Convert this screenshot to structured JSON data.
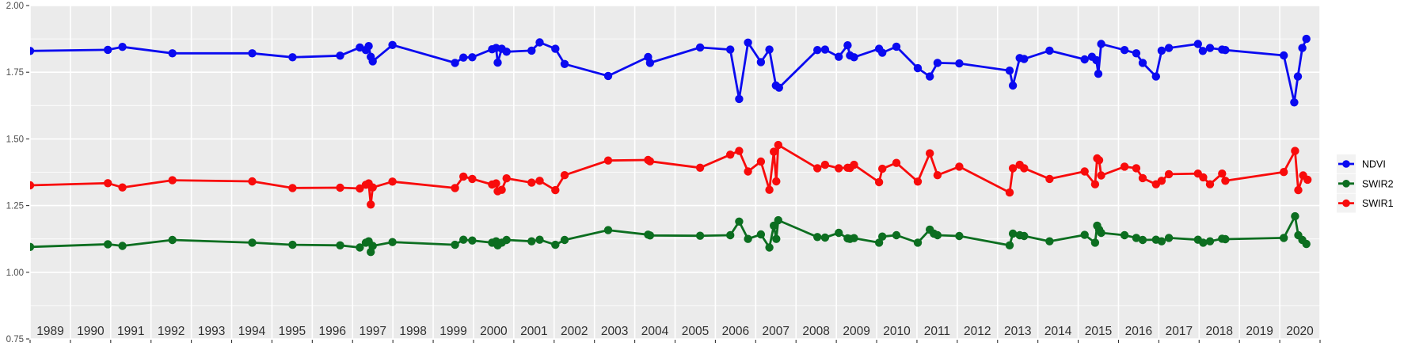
{
  "chart_data": {
    "type": "line",
    "title": "",
    "xlabel": "",
    "ylabel": "",
    "background_color": "#FFFFFF",
    "panel_color": "#EBEBEB",
    "grid_color": "#FFFFFF",
    "x_axis": {
      "range": [
        1989.0,
        2021.0
      ],
      "grid_years": [
        1989,
        1990,
        1991,
        1992,
        1993,
        1994,
        1995,
        1996,
        1997,
        1998,
        1999,
        2000,
        2001,
        2002,
        2003,
        2004,
        2005,
        2006,
        2007,
        2008,
        2009,
        2010,
        2011,
        2012,
        2013,
        2014,
        2015,
        2016,
        2017,
        2018,
        2019,
        2020,
        2021
      ],
      "tick_labels": [
        "1989",
        "1990",
        "1991",
        "1992",
        "1993",
        "1994",
        "1995",
        "1996",
        "1997",
        "1998",
        "1999",
        "2000",
        "2001",
        "2002",
        "2003",
        "2004",
        "2005",
        "2006",
        "2007",
        "2008",
        "2009",
        "2010",
        "2011",
        "2012",
        "2013",
        "2014",
        "2015",
        "2016",
        "2017",
        "2018",
        "2019",
        "2020"
      ],
      "label_positions": [
        1989.5,
        1990.5,
        1991.5,
        1992.5,
        1993.5,
        1994.5,
        1995.5,
        1996.5,
        1997.5,
        1998.5,
        1999.5,
        2000.5,
        2001.5,
        2002.5,
        2003.5,
        2004.5,
        2005.5,
        2006.5,
        2007.5,
        2008.5,
        2009.5,
        2010.5,
        2011.5,
        2012.5,
        2013.5,
        2014.5,
        2015.5,
        2016.5,
        2017.5,
        2018.5,
        2019.5,
        2020.5
      ]
    },
    "y_axis": {
      "range": [
        0.75,
        2.0
      ],
      "major_ticks": [
        2.0,
        1.75,
        1.5,
        1.25,
        1.0,
        0.75
      ],
      "tick_labels": [
        "2.00",
        "1.75",
        "1.50",
        "1.25",
        "1.00",
        "0.75"
      ],
      "minor_ticks": [
        1.875,
        1.625,
        1.375,
        1.125,
        0.875
      ]
    },
    "legend": {
      "position": "right",
      "items": [
        {
          "label": "NDVI",
          "color": "#0A0AF0"
        },
        {
          "label": "SWIR2",
          "color": "#0C6E20"
        },
        {
          "label": "SWIR1",
          "color": "#F80B0B"
        }
      ]
    },
    "series": [
      {
        "name": "NDVI",
        "color": "#0A0AF0",
        "points": [
          [
            1989.0,
            1.83
          ],
          [
            1990.93,
            1.834
          ],
          [
            1991.29,
            1.845
          ],
          [
            1992.53,
            1.821
          ],
          [
            1994.51,
            1.821
          ],
          [
            1995.51,
            1.806
          ],
          [
            1996.69,
            1.812
          ],
          [
            1997.18,
            1.843
          ],
          [
            1997.33,
            1.833
          ],
          [
            1997.4,
            1.848
          ],
          [
            1997.45,
            1.808
          ],
          [
            1997.5,
            1.791
          ],
          [
            1997.99,
            1.852
          ],
          [
            1999.54,
            1.785
          ],
          [
            1999.75,
            1.805
          ],
          [
            1999.97,
            1.806
          ],
          [
            2000.46,
            1.836
          ],
          [
            2000.56,
            1.841
          ],
          [
            2000.6,
            1.786
          ],
          [
            2000.7,
            1.838
          ],
          [
            2000.82,
            1.827
          ],
          [
            2001.44,
            1.831
          ],
          [
            2001.64,
            1.862
          ],
          [
            2002.03,
            1.838
          ],
          [
            2002.26,
            1.781
          ],
          [
            2003.34,
            1.736
          ],
          [
            2004.33,
            1.807
          ],
          [
            2004.38,
            1.785
          ],
          [
            2005.62,
            1.843
          ],
          [
            2006.37,
            1.835
          ],
          [
            2006.59,
            1.65
          ],
          [
            2006.81,
            1.861
          ],
          [
            2007.13,
            1.788
          ],
          [
            2007.34,
            1.835
          ],
          [
            2007.5,
            1.7
          ],
          [
            2007.58,
            1.692
          ],
          [
            2008.53,
            1.833
          ],
          [
            2008.72,
            1.835
          ],
          [
            2009.06,
            1.808
          ],
          [
            2009.28,
            1.851
          ],
          [
            2009.34,
            1.813
          ],
          [
            2009.44,
            1.806
          ],
          [
            2010.06,
            1.838
          ],
          [
            2010.14,
            1.823
          ],
          [
            2010.49,
            1.846
          ],
          [
            2011.02,
            1.765
          ],
          [
            2011.32,
            1.734
          ],
          [
            2011.51,
            1.785
          ],
          [
            2012.05,
            1.783
          ],
          [
            2013.3,
            1.756
          ],
          [
            2013.38,
            1.7
          ],
          [
            2013.55,
            1.803
          ],
          [
            2013.66,
            1.8
          ],
          [
            2014.29,
            1.831
          ],
          [
            2015.16,
            1.798
          ],
          [
            2015.34,
            1.808
          ],
          [
            2015.45,
            1.795
          ],
          [
            2015.5,
            1.744
          ],
          [
            2015.57,
            1.856
          ],
          [
            2016.15,
            1.833
          ],
          [
            2016.44,
            1.821
          ],
          [
            2016.6,
            1.785
          ],
          [
            2016.93,
            1.734
          ],
          [
            2017.07,
            1.831
          ],
          [
            2017.25,
            1.841
          ],
          [
            2017.97,
            1.856
          ],
          [
            2018.09,
            1.83
          ],
          [
            2018.27,
            1.841
          ],
          [
            2018.57,
            1.835
          ],
          [
            2018.65,
            1.833
          ],
          [
            2020.1,
            1.813
          ],
          [
            2020.36,
            1.637
          ],
          [
            2020.45,
            1.734
          ],
          [
            2020.56,
            1.841
          ],
          [
            2020.66,
            1.875
          ]
        ]
      },
      {
        "name": "SWIR2",
        "color": "#0C6E20",
        "points": [
          [
            1989.0,
            1.095
          ],
          [
            1990.93,
            1.105
          ],
          [
            1991.29,
            1.099
          ],
          [
            1992.53,
            1.121
          ],
          [
            1994.51,
            1.111
          ],
          [
            1995.51,
            1.103
          ],
          [
            1996.69,
            1.101
          ],
          [
            1997.18,
            1.093
          ],
          [
            1997.33,
            1.111
          ],
          [
            1997.4,
            1.116
          ],
          [
            1997.45,
            1.076
          ],
          [
            1997.5,
            1.099
          ],
          [
            1997.99,
            1.113
          ],
          [
            1999.54,
            1.103
          ],
          [
            1999.75,
            1.122
          ],
          [
            1999.97,
            1.119
          ],
          [
            2000.46,
            1.111
          ],
          [
            2000.56,
            1.116
          ],
          [
            2000.6,
            1.101
          ],
          [
            2000.7,
            1.111
          ],
          [
            2000.82,
            1.121
          ],
          [
            2001.44,
            1.116
          ],
          [
            2001.64,
            1.122
          ],
          [
            2002.03,
            1.103
          ],
          [
            2002.26,
            1.121
          ],
          [
            2003.34,
            1.158
          ],
          [
            2004.33,
            1.141
          ],
          [
            2004.38,
            1.138
          ],
          [
            2005.62,
            1.137
          ],
          [
            2006.37,
            1.139
          ],
          [
            2006.59,
            1.19
          ],
          [
            2006.81,
            1.125
          ],
          [
            2007.13,
            1.142
          ],
          [
            2007.34,
            1.093
          ],
          [
            2007.45,
            1.175
          ],
          [
            2007.51,
            1.125
          ],
          [
            2007.56,
            1.195
          ],
          [
            2008.53,
            1.132
          ],
          [
            2008.72,
            1.13
          ],
          [
            2009.06,
            1.148
          ],
          [
            2009.28,
            1.127
          ],
          [
            2009.34,
            1.125
          ],
          [
            2009.44,
            1.128
          ],
          [
            2010.06,
            1.111
          ],
          [
            2010.14,
            1.134
          ],
          [
            2010.49,
            1.139
          ],
          [
            2011.02,
            1.111
          ],
          [
            2011.32,
            1.16
          ],
          [
            2011.42,
            1.145
          ],
          [
            2011.51,
            1.139
          ],
          [
            2012.05,
            1.136
          ],
          [
            2013.3,
            1.101
          ],
          [
            2013.38,
            1.145
          ],
          [
            2013.55,
            1.139
          ],
          [
            2013.66,
            1.136
          ],
          [
            2014.29,
            1.116
          ],
          [
            2015.16,
            1.14
          ],
          [
            2015.42,
            1.111
          ],
          [
            2015.47,
            1.175
          ],
          [
            2015.52,
            1.16
          ],
          [
            2015.57,
            1.148
          ],
          [
            2016.15,
            1.139
          ],
          [
            2016.44,
            1.129
          ],
          [
            2016.6,
            1.121
          ],
          [
            2016.93,
            1.122
          ],
          [
            2017.07,
            1.116
          ],
          [
            2017.25,
            1.129
          ],
          [
            2017.97,
            1.122
          ],
          [
            2018.1,
            1.111
          ],
          [
            2018.27,
            1.116
          ],
          [
            2018.57,
            1.126
          ],
          [
            2018.65,
            1.124
          ],
          [
            2020.1,
            1.129
          ],
          [
            2020.38,
            1.21
          ],
          [
            2020.46,
            1.139
          ],
          [
            2020.56,
            1.121
          ],
          [
            2020.66,
            1.106
          ]
        ]
      },
      {
        "name": "SWIR1",
        "color": "#F80B0B",
        "points": [
          [
            1989.0,
            1.326
          ],
          [
            1990.93,
            1.334
          ],
          [
            1991.29,
            1.318
          ],
          [
            1992.53,
            1.345
          ],
          [
            1994.51,
            1.341
          ],
          [
            1995.51,
            1.316
          ],
          [
            1996.69,
            1.317
          ],
          [
            1997.18,
            1.314
          ],
          [
            1997.33,
            1.328
          ],
          [
            1997.4,
            1.333
          ],
          [
            1997.45,
            1.254
          ],
          [
            1997.5,
            1.318
          ],
          [
            1997.99,
            1.34
          ],
          [
            1999.54,
            1.316
          ],
          [
            1999.75,
            1.359
          ],
          [
            1999.97,
            1.35
          ],
          [
            2000.46,
            1.329
          ],
          [
            2000.56,
            1.333
          ],
          [
            2000.6,
            1.304
          ],
          [
            2000.7,
            1.309
          ],
          [
            2000.82,
            1.352
          ],
          [
            2001.44,
            1.336
          ],
          [
            2001.64,
            1.343
          ],
          [
            2002.03,
            1.308
          ],
          [
            2002.26,
            1.364
          ],
          [
            2003.34,
            1.419
          ],
          [
            2004.33,
            1.421
          ],
          [
            2004.38,
            1.416
          ],
          [
            2005.62,
            1.392
          ],
          [
            2006.37,
            1.441
          ],
          [
            2006.59,
            1.455
          ],
          [
            2006.81,
            1.378
          ],
          [
            2007.13,
            1.415
          ],
          [
            2007.34,
            1.309
          ],
          [
            2007.45,
            1.452
          ],
          [
            2007.51,
            1.341
          ],
          [
            2007.56,
            1.477
          ],
          [
            2008.53,
            1.39
          ],
          [
            2008.72,
            1.403
          ],
          [
            2009.06,
            1.39
          ],
          [
            2009.28,
            1.392
          ],
          [
            2009.34,
            1.391
          ],
          [
            2009.44,
            1.403
          ],
          [
            2010.06,
            1.338
          ],
          [
            2010.14,
            1.388
          ],
          [
            2010.49,
            1.41
          ],
          [
            2011.02,
            1.34
          ],
          [
            2011.32,
            1.446
          ],
          [
            2011.51,
            1.364
          ],
          [
            2012.05,
            1.396
          ],
          [
            2013.3,
            1.299
          ],
          [
            2013.38,
            1.39
          ],
          [
            2013.55,
            1.403
          ],
          [
            2013.66,
            1.39
          ],
          [
            2014.29,
            1.35
          ],
          [
            2015.16,
            1.378
          ],
          [
            2015.42,
            1.33
          ],
          [
            2015.47,
            1.427
          ],
          [
            2015.52,
            1.42
          ],
          [
            2015.57,
            1.363
          ],
          [
            2016.15,
            1.396
          ],
          [
            2016.44,
            1.39
          ],
          [
            2016.6,
            1.353
          ],
          [
            2016.93,
            1.33
          ],
          [
            2017.07,
            1.343
          ],
          [
            2017.25,
            1.368
          ],
          [
            2017.97,
            1.37
          ],
          [
            2018.1,
            1.356
          ],
          [
            2018.27,
            1.33
          ],
          [
            2018.57,
            1.37
          ],
          [
            2018.65,
            1.343
          ],
          [
            2020.1,
            1.376
          ],
          [
            2020.38,
            1.455
          ],
          [
            2020.46,
            1.308
          ],
          [
            2020.58,
            1.363
          ],
          [
            2020.69,
            1.347
          ]
        ]
      }
    ],
    "style": {
      "axis_text_color_y": "#4D4D4D",
      "axis_text_color_x": "#303030",
      "tick_color": "#333333",
      "legend_key_color": "#F2F2F2",
      "legend_text_color": "#000000",
      "line_width": 2.8,
      "point_radius": 5.2
    }
  }
}
